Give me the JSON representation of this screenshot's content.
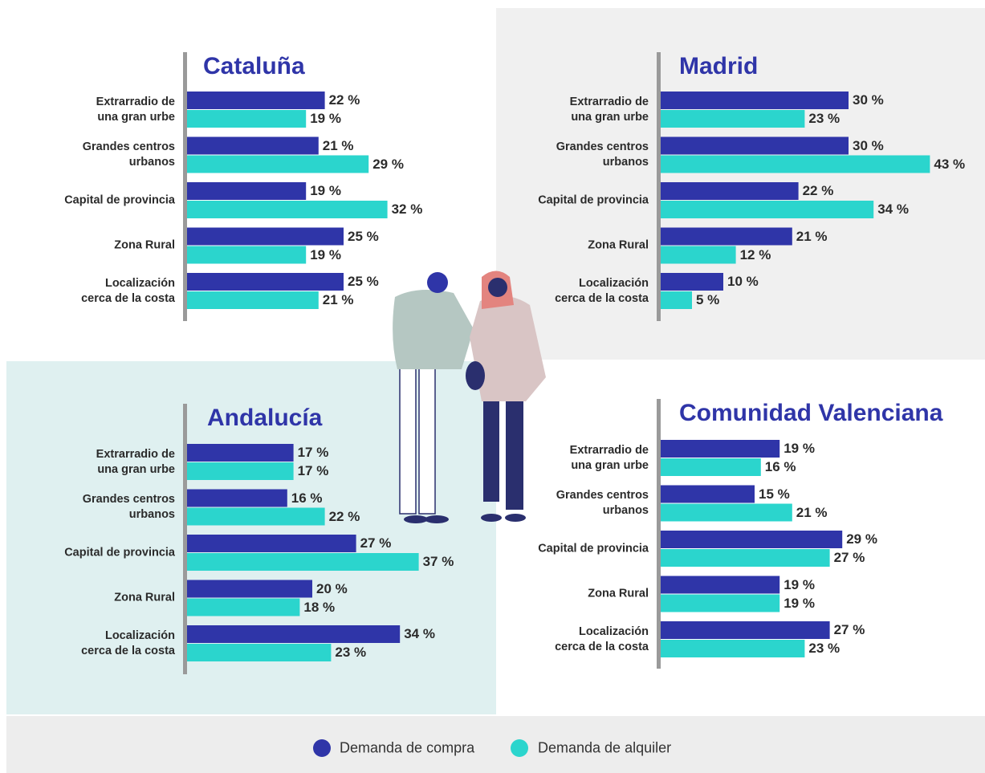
{
  "chart_data": [
    {
      "type": "bar",
      "orientation": "horizontal",
      "title": "Cataluña",
      "categories": [
        "Extrarradio de\nuna gran urbe",
        "Grandes centros\nurbanos",
        "Capital de provincia",
        "Zona Rural",
        "Localización\ncerca de la costa"
      ],
      "series": [
        {
          "name": "Demanda de compra",
          "color": "#2f35a8",
          "values": [
            22,
            21,
            19,
            25,
            25
          ],
          "value_labels": [
            "22 %",
            "21 %",
            "19 %",
            "25 %",
            "25 %"
          ]
        },
        {
          "name": "Demanda de alquiler",
          "color": "#2bd5cd",
          "values": [
            19,
            29,
            32,
            19,
            21
          ],
          "value_labels": [
            "19 %",
            "29 %",
            "32 %",
            "19 %",
            "21 %"
          ]
        }
      ]
    },
    {
      "type": "bar",
      "orientation": "horizontal",
      "title": "Madrid",
      "categories": [
        "Extrarradio de\nuna gran urbe",
        "Grandes centros\nurbanos",
        "Capital de provincia",
        "Zona Rural",
        "Localización\ncerca de la costa"
      ],
      "series": [
        {
          "name": "Demanda de compra",
          "color": "#2f35a8",
          "values": [
            30,
            30,
            22,
            21,
            10
          ],
          "value_labels": [
            "30 %",
            "30 %",
            "22 %",
            "21 %",
            "10 %"
          ]
        },
        {
          "name": "Demanda de alquiler",
          "color": "#2bd5cd",
          "values": [
            23,
            43,
            34,
            12,
            5
          ],
          "value_labels": [
            "23 %",
            "43 %",
            "34 %",
            "12 %",
            "5 %"
          ]
        }
      ]
    },
    {
      "type": "bar",
      "orientation": "horizontal",
      "title": "Andalucía",
      "categories": [
        "Extrarradio de\nuna gran urbe",
        "Grandes centros\nurbanos",
        "Capital de provincia",
        "Zona Rural",
        "Localización\ncerca de la costa"
      ],
      "series": [
        {
          "name": "Demanda de compra",
          "color": "#2f35a8",
          "values": [
            17,
            16,
            27,
            20,
            34
          ],
          "value_labels": [
            "17 %",
            "16 %",
            "27 %",
            "20 %",
            "34 %"
          ]
        },
        {
          "name": "Demanda de alquiler",
          "color": "#2bd5cd",
          "values": [
            17,
            22,
            37,
            18,
            23
          ],
          "value_labels": [
            "17 %",
            "22 %",
            "37 %",
            "18 %",
            "23 %"
          ]
        }
      ]
    },
    {
      "type": "bar",
      "orientation": "horizontal",
      "title": "Comunidad Valenciana",
      "categories": [
        "Extrarradio de\nuna gran urbe",
        "Grandes centros\nurbanos",
        "Capital de provincia",
        "Zona Rural",
        "Localización\ncerca de la costa"
      ],
      "series": [
        {
          "name": "Demanda de compra",
          "color": "#2f35a8",
          "values": [
            19,
            15,
            29,
            19,
            27
          ],
          "value_labels": [
            "19 %",
            "15 %",
            "29 %",
            "19 %",
            "27 %"
          ]
        },
        {
          "name": "Demanda de alquiler",
          "color": "#2bd5cd",
          "values": [
            16,
            21,
            27,
            19,
            23
          ],
          "value_labels": [
            "16 %",
            "21 %",
            "27 %",
            "19 %",
            "23 %"
          ]
        }
      ]
    }
  ]
}
